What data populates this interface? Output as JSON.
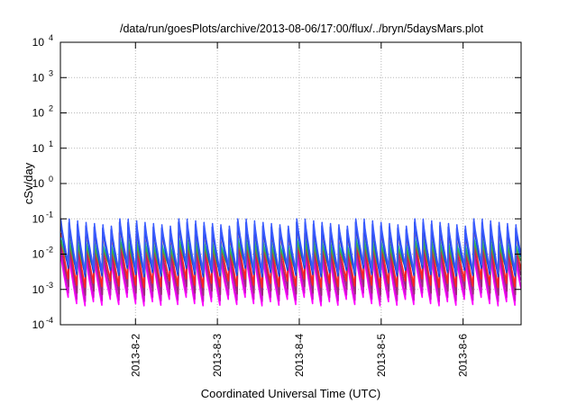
{
  "chart_data": {
    "type": "line",
    "title": "/data/run/goesPlots/archive/2013-08-06/17:00/flux/../bryn/5daysMars.plot",
    "xlabel": "Coordinated Universal Time (UTC)",
    "ylabel": "cSv/day",
    "y_scale": "log",
    "ylim": [
      0.0001,
      10000
    ],
    "y_ticks": [
      {
        "base": "10",
        "exp": "-4"
      },
      {
        "base": "10",
        "exp": "-3"
      },
      {
        "base": "10",
        "exp": "-2"
      },
      {
        "base": "10",
        "exp": "-1"
      },
      {
        "base": "10",
        "exp": "0"
      },
      {
        "base": "10",
        "exp": "1"
      },
      {
        "base": "10",
        "exp": "2"
      },
      {
        "base": "10",
        "exp": "3"
      },
      {
        "base": "10",
        "exp": "4"
      }
    ],
    "xlim": [
      "2013-08-01T02:00",
      "2013-08-06T17:00"
    ],
    "x_ticks": [
      "2013-8-2",
      "2013-8-3",
      "2013-8-4",
      "2013-8-5",
      "2013-8-6"
    ],
    "grid": true,
    "legend": "none",
    "pattern": {
      "period_hours": 2.47,
      "peak_levels": [
        0.08,
        0.06,
        0.045,
        0.035,
        0.025,
        0.015,
        0.01
      ],
      "trough_levels": [
        0.004,
        0.003,
        0.002,
        0.0013,
        0.001,
        0.0008,
        0.0006
      ]
    },
    "series": [
      {
        "color": "#ff00ff",
        "peak": 0.012,
        "trough": 0.0006
      },
      {
        "color": "#d010d0",
        "peak": 0.016,
        "trough": 0.0008
      },
      {
        "color": "#9a2a7a",
        "peak": 0.02,
        "trough": 0.0012
      },
      {
        "color": "#ff2222",
        "peak": 0.04,
        "trough": 0.002
      },
      {
        "color": "#00cccc",
        "peak": 0.03,
        "trough": 0.006
      },
      {
        "color": "#44aa44",
        "peak": 0.025,
        "trough": 0.0045
      },
      {
        "color": "#1c3fd8",
        "peak": 0.08,
        "trough": 0.004
      },
      {
        "color": "#3a5cff",
        "peak": 0.1,
        "trough": 0.005
      }
    ]
  }
}
